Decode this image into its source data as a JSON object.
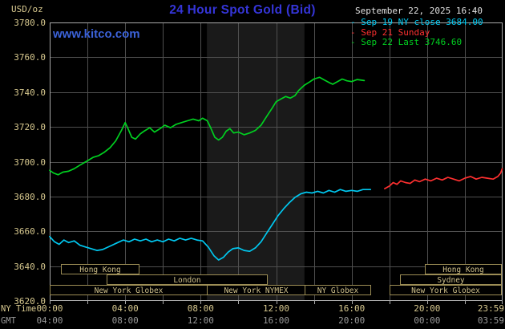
{
  "header": {
    "unit": "USD/oz",
    "title": "24 Hour Spot Gold (Bid)",
    "timestamp": "September 22, 2025 16:40",
    "watermark": "www.kitco.com"
  },
  "legend": {
    "items": [
      {
        "label": "- Sep 19 NY close 3684.00",
        "color": "#00c8f0"
      },
      {
        "label": "- Sep 21 Sunday",
        "color": "#ff3030"
      },
      {
        "label": "- Sep 22 Last 3746.60",
        "color": "#00d020"
      }
    ]
  },
  "axes": {
    "ny_label": "NY Time",
    "gmt_label": "GMT",
    "ny_ticks": [
      "00:00",
      "04:00",
      "08:00",
      "12:00",
      "16:00",
      "20:00",
      "23:59"
    ],
    "gmt_ticks": [
      "04:00",
      "08:00",
      "12:00",
      "16:00",
      "20:00",
      "00:00",
      "03:59"
    ],
    "tick_hours": [
      0,
      4,
      8,
      12,
      16,
      20,
      23.983
    ],
    "y_ticks": [
      "3780.0",
      "3760.0",
      "3740.0",
      "3720.0",
      "3700.0",
      "3680.0",
      "3660.0",
      "3640.0",
      "3620.0"
    ]
  },
  "colors": {
    "bg": "#000000",
    "brand_blue": "#3535d8",
    "link_blue": "#3b62d8",
    "text_light": "#e2e2e2",
    "tan": "#d8c98f",
    "tan_dim": "#9c8d55",
    "session_text": "#cfc08a",
    "gmt_gray": "#9a9a9a",
    "grid": "#4f4f4f",
    "border": "#aaaaaa",
    "band": "#1a1a1a",
    "cyan": "#00c8f0",
    "red": "#ff3030",
    "green": "#00d020"
  },
  "chart_data": {
    "type": "line",
    "title": "24 Hour Spot Gold (Bid)",
    "ylabel": "USD/oz",
    "x_unit": "NY time (hours)",
    "xlim": [
      0,
      24
    ],
    "ylim": [
      3620,
      3780
    ],
    "y_step": 20,
    "x_grid_step": 2,
    "grid": true,
    "shaded_band_hours": [
      8.33,
      13.5
    ],
    "series": [
      {
        "id": "sep19",
        "name": "Sep 19 NY close 3684.00",
        "color": "#00c8f0",
        "points": [
          [
            0,
            3657
          ],
          [
            0.25,
            3654
          ],
          [
            0.5,
            3652.5
          ],
          [
            0.75,
            3655
          ],
          [
            1,
            3653.5
          ],
          [
            1.3,
            3654.5
          ],
          [
            1.6,
            3652
          ],
          [
            1.9,
            3651
          ],
          [
            2.2,
            3650
          ],
          [
            2.5,
            3649
          ],
          [
            2.8,
            3649.5
          ],
          [
            3,
            3650.5
          ],
          [
            3.3,
            3652
          ],
          [
            3.6,
            3653.5
          ],
          [
            3.9,
            3655
          ],
          [
            4.2,
            3654
          ],
          [
            4.5,
            3655.5
          ],
          [
            4.8,
            3654.5
          ],
          [
            5.1,
            3655.5
          ],
          [
            5.4,
            3654
          ],
          [
            5.7,
            3655
          ],
          [
            6,
            3654
          ],
          [
            6.3,
            3655.5
          ],
          [
            6.6,
            3654.5
          ],
          [
            6.9,
            3656
          ],
          [
            7.2,
            3655
          ],
          [
            7.5,
            3656
          ],
          [
            7.8,
            3655
          ],
          [
            8.1,
            3654.5
          ],
          [
            8.4,
            3651
          ],
          [
            8.7,
            3646
          ],
          [
            8.95,
            3643.5
          ],
          [
            9.2,
            3645
          ],
          [
            9.45,
            3648
          ],
          [
            9.7,
            3650
          ],
          [
            10,
            3650.5
          ],
          [
            10.3,
            3649
          ],
          [
            10.6,
            3648.5
          ],
          [
            10.9,
            3650.5
          ],
          [
            11.2,
            3654
          ],
          [
            11.5,
            3659
          ],
          [
            11.8,
            3664
          ],
          [
            12.1,
            3669
          ],
          [
            12.4,
            3673
          ],
          [
            12.7,
            3676.5
          ],
          [
            13,
            3679.5
          ],
          [
            13.3,
            3681.5
          ],
          [
            13.6,
            3682.5
          ],
          [
            13.9,
            3682
          ],
          [
            14.2,
            3683
          ],
          [
            14.5,
            3682
          ],
          [
            14.8,
            3683.5
          ],
          [
            15.1,
            3682.5
          ],
          [
            15.4,
            3684
          ],
          [
            15.7,
            3683
          ],
          [
            16,
            3683.5
          ],
          [
            16.3,
            3683
          ],
          [
            16.6,
            3684
          ],
          [
            17,
            3684
          ]
        ]
      },
      {
        "id": "sep21",
        "name": "Sep 21 Sunday",
        "color": "#ff3030",
        "points": [
          [
            17.75,
            3684.5
          ],
          [
            18,
            3686
          ],
          [
            18.2,
            3688
          ],
          [
            18.4,
            3687
          ],
          [
            18.6,
            3689
          ],
          [
            18.85,
            3688
          ],
          [
            19.1,
            3687.5
          ],
          [
            19.35,
            3689.5
          ],
          [
            19.6,
            3688.5
          ],
          [
            19.9,
            3690
          ],
          [
            20.2,
            3689
          ],
          [
            20.5,
            3690.5
          ],
          [
            20.8,
            3689.5
          ],
          [
            21.1,
            3691
          ],
          [
            21.4,
            3690
          ],
          [
            21.7,
            3689
          ],
          [
            22,
            3690.5
          ],
          [
            22.3,
            3691.5
          ],
          [
            22.6,
            3690
          ],
          [
            22.9,
            3691
          ],
          [
            23.2,
            3690.5
          ],
          [
            23.5,
            3690
          ],
          [
            23.75,
            3691.5
          ],
          [
            23.9,
            3693.5
          ],
          [
            23.98,
            3696
          ]
        ]
      },
      {
        "id": "sep22",
        "name": "Sep 22 Last 3746.60",
        "color": "#00d020",
        "points": [
          [
            0,
            3695
          ],
          [
            0.2,
            3693.5
          ],
          [
            0.45,
            3692.5
          ],
          [
            0.7,
            3694
          ],
          [
            1,
            3694.5
          ],
          [
            1.3,
            3696
          ],
          [
            1.6,
            3698
          ],
          [
            2,
            3700.5
          ],
          [
            2.3,
            3702.5
          ],
          [
            2.6,
            3703.5
          ],
          [
            2.9,
            3705.5
          ],
          [
            3.2,
            3708
          ],
          [
            3.5,
            3712
          ],
          [
            3.8,
            3718
          ],
          [
            4,
            3722.5
          ],
          [
            4.15,
            3719
          ],
          [
            4.35,
            3714
          ],
          [
            4.55,
            3713
          ],
          [
            4.8,
            3716
          ],
          [
            5,
            3717.5
          ],
          [
            5.3,
            3719.5
          ],
          [
            5.55,
            3717
          ],
          [
            5.85,
            3719
          ],
          [
            6.1,
            3721
          ],
          [
            6.4,
            3719.5
          ],
          [
            6.7,
            3721.5
          ],
          [
            7,
            3722.5
          ],
          [
            7.3,
            3723.5
          ],
          [
            7.6,
            3724.5
          ],
          [
            7.9,
            3723.5
          ],
          [
            8.1,
            3725
          ],
          [
            8.35,
            3723.5
          ],
          [
            8.55,
            3719
          ],
          [
            8.75,
            3714
          ],
          [
            8.95,
            3712.5
          ],
          [
            9.15,
            3714
          ],
          [
            9.35,
            3717.5
          ],
          [
            9.55,
            3719
          ],
          [
            9.75,
            3716.5
          ],
          [
            10,
            3717
          ],
          [
            10.3,
            3715.5
          ],
          [
            10.6,
            3716.5
          ],
          [
            10.9,
            3718
          ],
          [
            11.2,
            3721
          ],
          [
            11.5,
            3726
          ],
          [
            11.8,
            3731
          ],
          [
            12,
            3734.5
          ],
          [
            12.25,
            3736
          ],
          [
            12.5,
            3737.5
          ],
          [
            12.75,
            3736.5
          ],
          [
            13,
            3738
          ],
          [
            13.2,
            3741
          ],
          [
            13.5,
            3744
          ],
          [
            13.8,
            3746
          ],
          [
            14,
            3747.5
          ],
          [
            14.3,
            3748.5
          ],
          [
            14.55,
            3747
          ],
          [
            14.8,
            3745.5
          ],
          [
            15,
            3744.5
          ],
          [
            15.25,
            3746
          ],
          [
            15.5,
            3747.5
          ],
          [
            15.75,
            3746.5
          ],
          [
            16,
            3746
          ],
          [
            16.3,
            3747.2
          ],
          [
            16.67,
            3746.6
          ]
        ]
      }
    ],
    "sessions": [
      {
        "label": "Hong Kong",
        "row": 0,
        "start": 0.6,
        "end": 4.7
      },
      {
        "label": "Hong Kong",
        "row": 0,
        "start": 19.9,
        "end": 23.9
      },
      {
        "label": "London",
        "row": 1,
        "start": 3.0,
        "end": 11.5
      },
      {
        "label": "Sydney",
        "row": 1,
        "start": 18.55,
        "end": 23.9
      },
      {
        "label": "New York Globex",
        "row": 2,
        "start": 0.0,
        "end": 8.33
      },
      {
        "label": "New York NYMEX",
        "row": 2,
        "start": 8.33,
        "end": 13.5
      },
      {
        "label": "NY Globex",
        "row": 2,
        "start": 13.5,
        "end": 17.0
      },
      {
        "label": "New York Globex",
        "row": 2,
        "start": 18.0,
        "end": 23.9
      }
    ]
  }
}
